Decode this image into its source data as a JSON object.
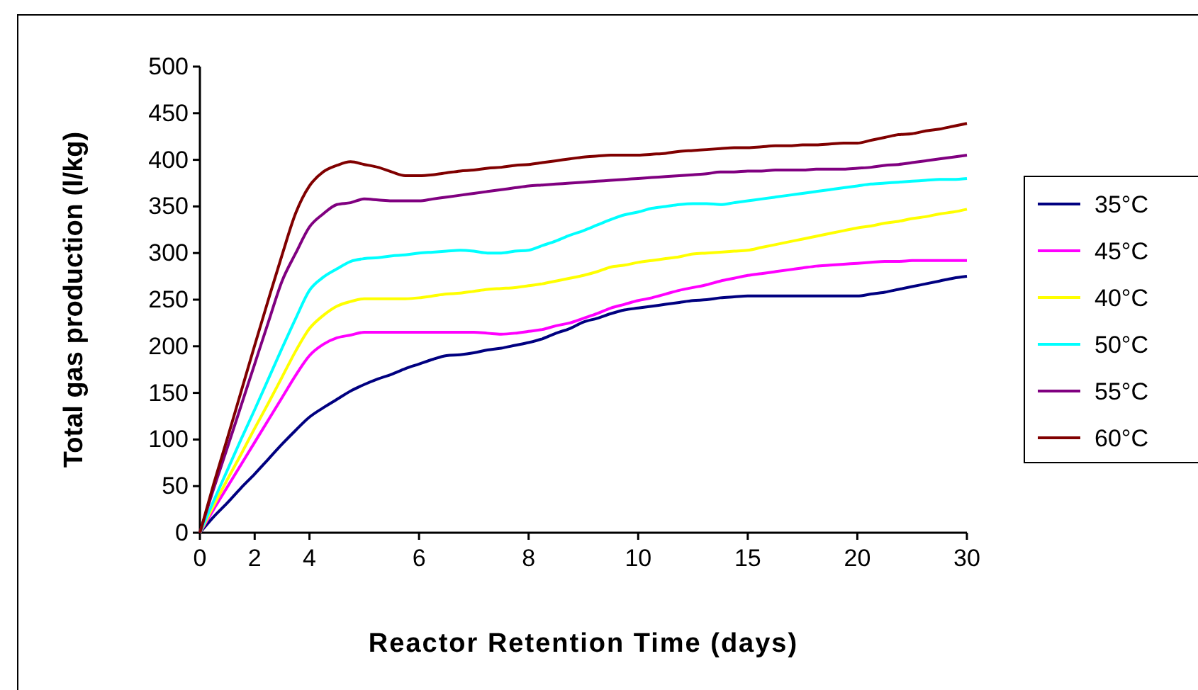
{
  "chart_data": {
    "type": "line",
    "xlabel": "Reactor Retention Time (days)",
    "ylabel": "Total gas production (l/kg)",
    "categories": [
      "0",
      null,
      null,
      null,
      "2",
      null,
      null,
      null,
      "4",
      null,
      null,
      null,
      null,
      null,
      null,
      null,
      "6",
      null,
      null,
      null,
      null,
      null,
      null,
      null,
      "8",
      null,
      null,
      null,
      null,
      null,
      null,
      null,
      "10",
      null,
      null,
      null,
      null,
      null,
      null,
      null,
      "15",
      null,
      null,
      null,
      null,
      null,
      null,
      null,
      "20",
      null,
      null,
      null,
      null,
      null,
      null,
      null,
      "30"
    ],
    "ylim": [
      0,
      500
    ],
    "yticks": [
      0,
      50,
      100,
      150,
      200,
      250,
      300,
      350,
      400,
      450,
      500
    ],
    "grid": false,
    "legend": "right",
    "marker": "none",
    "line_style": "solid",
    "series": [
      {
        "name": "35°C",
        "color": "#000080",
        "values": [
          0,
          17,
          32,
          48,
          63,
          79,
          95,
          110,
          124,
          134,
          143,
          152,
          159,
          165,
          170,
          176,
          181,
          186,
          190,
          191,
          193,
          196,
          198,
          201,
          204,
          208,
          214,
          219,
          226,
          230,
          235,
          239,
          241,
          243,
          245,
          247,
          249,
          250,
          252,
          253,
          254,
          254,
          254,
          254,
          254,
          254,
          254,
          254,
          254,
          256,
          258,
          261,
          264,
          267,
          270,
          273,
          275
        ]
      },
      {
        "name": "45°C",
        "color": "#ff00ff",
        "values": [
          0,
          25,
          49,
          73,
          97,
          121,
          145,
          169,
          190,
          202,
          209,
          212,
          215,
          215,
          215,
          215,
          215,
          215,
          215,
          215,
          215,
          214,
          213,
          214,
          216,
          218,
          222,
          225,
          230,
          235,
          241,
          245,
          249,
          252,
          256,
          260,
          263,
          266,
          270,
          273,
          276,
          278,
          280,
          282,
          284,
          286,
          287,
          288,
          289,
          290,
          291,
          291,
          292,
          292,
          292,
          292,
          292
        ]
      },
      {
        "name": "40°C",
        "color": "#ffff00",
        "values": [
          0,
          29,
          57,
          84,
          112,
          139,
          167,
          195,
          219,
          233,
          243,
          248,
          251,
          251,
          251,
          251,
          252,
          254,
          256,
          257,
          259,
          261,
          262,
          263,
          265,
          267,
          270,
          273,
          276,
          280,
          285,
          287,
          290,
          292,
          294,
          296,
          299,
          300,
          301,
          302,
          303,
          306,
          309,
          312,
          315,
          318,
          321,
          324,
          327,
          329,
          332,
          334,
          337,
          339,
          342,
          344,
          347
        ]
      },
      {
        "name": "50°C",
        "color": "#00ffff",
        "values": [
          0,
          34,
          67,
          100,
          132,
          165,
          198,
          230,
          260,
          274,
          283,
          291,
          294,
          295,
          297,
          298,
          300,
          301,
          302,
          303,
          302,
          300,
          300,
          302,
          303,
          308,
          313,
          319,
          324,
          330,
          336,
          341,
          344,
          348,
          350,
          352,
          353,
          353,
          352,
          354,
          356,
          358,
          360,
          362,
          364,
          366,
          368,
          370,
          372,
          374,
          375,
          376,
          377,
          378,
          379,
          379,
          380
        ]
      },
      {
        "name": "55°C",
        "color": "#800080",
        "values": [
          0,
          47,
          91,
          136,
          181,
          226,
          270,
          300,
          328,
          342,
          352,
          354,
          358,
          357,
          356,
          356,
          356,
          358,
          360,
          362,
          364,
          366,
          368,
          370,
          372,
          373,
          374,
          375,
          376,
          377,
          378,
          379,
          380,
          381,
          382,
          383,
          384,
          385,
          387,
          387,
          388,
          388,
          389,
          389,
          389,
          390,
          390,
          390,
          391,
          392,
          394,
          395,
          397,
          399,
          401,
          403,
          405
        ]
      },
      {
        "name": "60°C",
        "color": "#800000",
        "values": [
          0,
          52,
          101,
          151,
          201,
          250,
          298,
          343,
          372,
          387,
          394,
          398,
          395,
          392,
          387,
          383,
          383,
          384,
          386,
          388,
          389,
          391,
          392,
          394,
          395,
          397,
          399,
          401,
          403,
          404,
          405,
          405,
          405,
          406,
          407,
          409,
          410,
          411,
          412,
          413,
          413,
          414,
          415,
          415,
          416,
          416,
          417,
          418,
          418,
          421,
          424,
          427,
          428,
          431,
          433,
          436,
          439
        ]
      }
    ]
  }
}
